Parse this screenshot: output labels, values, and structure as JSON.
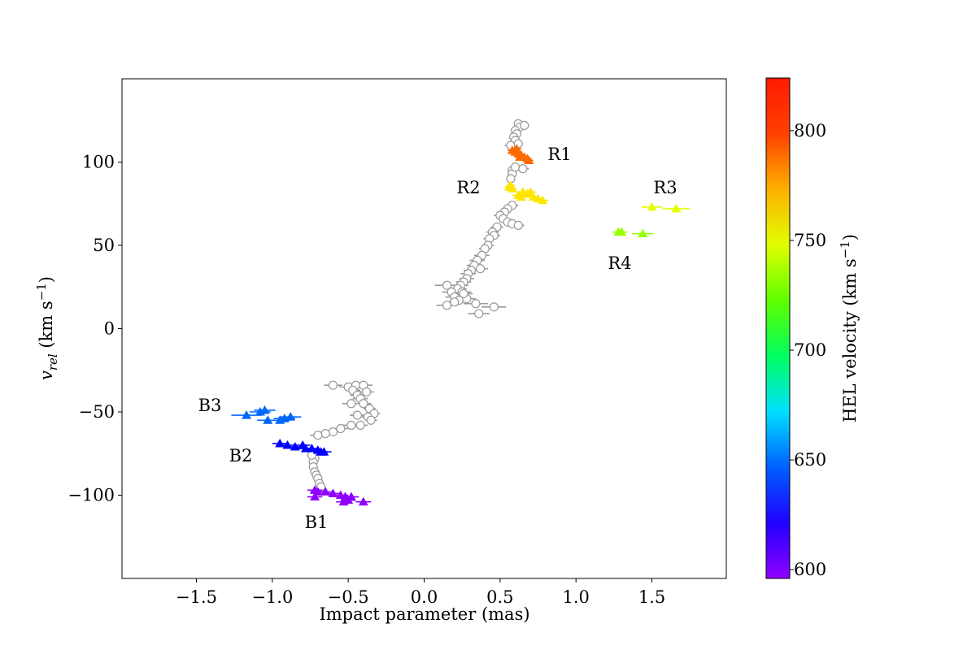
{
  "chart_data": {
    "type": "scatter",
    "xlabel": "Impact parameter (mas)",
    "ylabel_parts": [
      "v",
      "rel",
      " (km s",
      "−1",
      ")"
    ],
    "xlim": [
      -1.99,
      1.99
    ],
    "ylim": [
      -150,
      150
    ],
    "xticks": [
      {
        "value": -1.5,
        "label": "−1.5"
      },
      {
        "value": -1.0,
        "label": "−1.0"
      },
      {
        "value": -0.5,
        "label": "−0.5"
      },
      {
        "value": 0,
        "label": "0.0"
      },
      0.5,
      {
        "value": 1.0,
        "label": "1.0"
      },
      1.5
    ],
    "yticks": [
      {
        "value": -100,
        "label": "−100"
      },
      {
        "value": -50,
        "label": "−50"
      },
      0,
      50,
      100
    ],
    "colorbar": {
      "label_parts": [
        "HEL velocity (km s",
        "−1",
        ")"
      ],
      "clim": [
        596,
        824
      ],
      "ticks": [
        600,
        650,
        700,
        750,
        800
      ],
      "colors": [
        "#9000ff",
        "#2000ff",
        "#0060ff",
        "#00e0ff",
        "#00ff60",
        "#60ff00",
        "#e0ff00",
        "#ffb000",
        "#ff4000",
        "#ff1a00"
      ]
    },
    "series": [
      {
        "marker": "circle",
        "color": "#999999",
        "x": [
          0.62,
          0.63,
          0.6,
          0.61,
          0.59,
          0.6,
          0.57,
          0.66,
          0.62,
          0.58,
          0.58,
          0.6,
          0.57,
          0.65,
          0.58,
          0.55,
          0.53,
          0.5,
          0.52,
          0.55,
          0.58,
          0.62,
          0.48,
          0.45,
          0.46,
          0.43,
          0.42,
          0.4,
          0.38,
          0.35,
          0.33,
          0.31,
          0.29,
          0.28,
          0.26,
          0.24,
          0.15,
          0.22,
          0.18,
          0.25,
          0.2,
          0.23,
          0.2,
          0.15,
          0.34,
          0.46,
          0.36,
          0.28,
          0.26,
          0.37,
          -0.6,
          -0.5,
          -0.45,
          -0.4,
          -0.47,
          -0.44,
          -0.42,
          -0.48,
          -0.4,
          -0.36,
          -0.33,
          -0.37,
          -0.35,
          -0.42,
          -0.48,
          -0.55,
          -0.6,
          -0.65,
          -0.7,
          -0.72,
          -0.73,
          -0.73,
          -0.72,
          -0.71,
          -0.7,
          -0.69,
          -0.68,
          -0.74,
          -0.44,
          -0.38
        ],
        "values": [
          123,
          121,
          119,
          117,
          115,
          113,
          110,
          122,
          111,
          95,
          93,
          97,
          90,
          96,
          74,
          72,
          70,
          68,
          66,
          64,
          63,
          62,
          61,
          58,
          56,
          54,
          50,
          48,
          44,
          41,
          38,
          35,
          33,
          30,
          28,
          26,
          26,
          24,
          22,
          22,
          19,
          17,
          16,
          14,
          15,
          13,
          9,
          18,
          21,
          36,
          -34,
          -35,
          -34,
          -34,
          -37,
          -40,
          -42,
          -45,
          -45,
          -48,
          -51,
          -53,
          -55,
          -58,
          -58,
          -60,
          -62,
          -63,
          -64,
          -78,
          -80,
          -83,
          -86,
          -88,
          -90,
          -93,
          -95,
          -76,
          -52,
          -38
        ],
        "xerr": [
          0.03,
          0.03,
          0.03,
          0.03,
          0.03,
          0.03,
          0.04,
          0.03,
          0.03,
          0.03,
          0.03,
          0.03,
          0.03,
          0.04,
          0.04,
          0.04,
          0.04,
          0.04,
          0.04,
          0.04,
          0.05,
          0.04,
          0.04,
          0.04,
          0.04,
          0.04,
          0.04,
          0.04,
          0.05,
          0.05,
          0.05,
          0.05,
          0.05,
          0.05,
          0.05,
          0.05,
          0.08,
          0.06,
          0.06,
          0.06,
          0.06,
          0.06,
          0.06,
          0.07,
          0.08,
          0.08,
          0.07,
          0.06,
          0.06,
          0.05,
          0.06,
          0.06,
          0.05,
          0.06,
          0.05,
          0.05,
          0.05,
          0.06,
          0.05,
          0.04,
          0.04,
          0.05,
          0.04,
          0.05,
          0.06,
          0.06,
          0.05,
          0.05,
          0.05,
          0.03,
          0.03,
          0.03,
          0.03,
          0.03,
          0.03,
          0.03,
          0.03,
          0.03,
          0.05,
          0.05
        ]
      },
      {
        "name": "R1",
        "marker": "triangle",
        "color": "#ff6a00",
        "x": [
          0.58,
          0.6,
          0.62,
          0.64,
          0.66,
          0.68,
          0.69,
          0.61,
          0.63
        ],
        "values": [
          107,
          106,
          105,
          104,
          103,
          102,
          101,
          108,
          103
        ],
        "xerr": [
          0.03,
          0.03,
          0.03,
          0.03,
          0.03,
          0.03,
          0.03,
          0.03,
          0.03
        ]
      },
      {
        "name": "R2",
        "marker": "triangle",
        "color": "#ffe600",
        "x": [
          0.57,
          0.56,
          0.58,
          0.62,
          0.65,
          0.68,
          0.7,
          0.72,
          0.75,
          0.78,
          0.64
        ],
        "values": [
          86,
          85,
          84,
          80,
          82,
          81,
          82,
          79,
          78,
          77,
          79
        ],
        "xerr": [
          0.03,
          0.03,
          0.03,
          0.04,
          0.04,
          0.04,
          0.04,
          0.04,
          0.04,
          0.04,
          0.04
        ]
      },
      {
        "name": "R3",
        "marker": "triangle",
        "color": "#e6ff00",
        "x": [
          1.5,
          1.66
        ],
        "values": [
          73,
          72
        ],
        "xerr": [
          0.07,
          0.09
        ]
      },
      {
        "name": "R4",
        "marker": "triangle",
        "color": "#99ff00",
        "x": [
          1.28,
          1.3,
          1.44
        ],
        "values": [
          58,
          58,
          57
        ],
        "xerr": [
          0.04,
          0.04,
          0.07
        ]
      },
      {
        "name": "B3",
        "marker": "triangle",
        "color": "#0066ff",
        "x": [
          -1.17,
          -1.08,
          -1.05,
          -1.03,
          -0.95,
          -0.92,
          -0.88
        ],
        "values": [
          -52,
          -50,
          -49,
          -55,
          -55,
          -54,
          -53
        ],
        "xerr": [
          0.1,
          0.07,
          0.07,
          0.07,
          0.07,
          0.07,
          0.07
        ]
      },
      {
        "name": "B2",
        "marker": "triangle",
        "color": "#0000ff",
        "x": [
          -0.95,
          -0.9,
          -0.85,
          -0.8,
          -0.78,
          -0.74,
          -0.7,
          -0.68,
          -0.66
        ],
        "values": [
          -69,
          -70,
          -71,
          -70,
          -72,
          -72,
          -73,
          -74,
          -74
        ],
        "xerr": [
          0.05,
          0.05,
          0.05,
          0.05,
          0.05,
          0.05,
          0.05,
          0.05,
          0.05
        ]
      },
      {
        "name": "B1",
        "marker": "triangle",
        "color": "#9000ff",
        "x": [
          -0.72,
          -0.7,
          -0.65,
          -0.6,
          -0.55,
          -0.52,
          -0.5,
          -0.48,
          -0.4,
          -0.72,
          -0.53
        ],
        "values": [
          -97,
          -98,
          -98,
          -99,
          -100,
          -101,
          -103,
          -101,
          -104,
          -101,
          -104
        ],
        "xerr": [
          0.05,
          0.05,
          0.05,
          0.05,
          0.05,
          0.05,
          0.05,
          0.05,
          0.05,
          0.05,
          0.05
        ]
      }
    ]
  }
}
